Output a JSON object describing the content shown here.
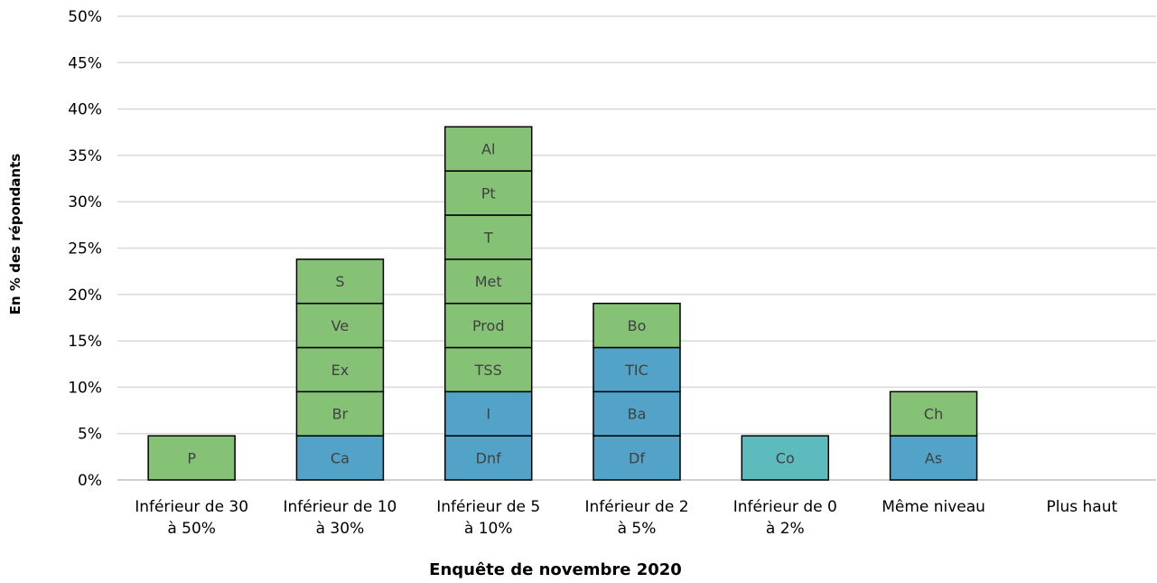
{
  "chart_data": {
    "type": "bar",
    "stacked": true,
    "title": "",
    "xlabel": "Enquête de novembre 2020",
    "ylabel": "En % des répondants",
    "ylim": [
      0,
      50
    ],
    "ytick_step": 5,
    "ytick_suffix": "%",
    "grid": true,
    "legend": "none",
    "colors": {
      "green": "#86C276",
      "blue": "#53A3C9",
      "teal": "#5DBBBD"
    },
    "categories": [
      {
        "label_lines": [
          "Inférieur de 30",
          "à 50%"
        ],
        "segments": [
          {
            "label": "P",
            "value": 4.76,
            "color": "green"
          }
        ]
      },
      {
        "label_lines": [
          "Inférieur de 10",
          "à 30%"
        ],
        "segments": [
          {
            "label": "Ca",
            "value": 4.76,
            "color": "blue"
          },
          {
            "label": "Br",
            "value": 4.76,
            "color": "green"
          },
          {
            "label": "Ex",
            "value": 4.76,
            "color": "green"
          },
          {
            "label": "Ve",
            "value": 4.76,
            "color": "green"
          },
          {
            "label": "S",
            "value": 4.76,
            "color": "green"
          }
        ]
      },
      {
        "label_lines": [
          "Inférieur de 5",
          "à 10%"
        ],
        "segments": [
          {
            "label": "Dnf",
            "value": 4.76,
            "color": "blue"
          },
          {
            "label": "I",
            "value": 4.76,
            "color": "blue"
          },
          {
            "label": "TSS",
            "value": 4.76,
            "color": "green"
          },
          {
            "label": "Prod",
            "value": 4.76,
            "color": "green"
          },
          {
            "label": "Met",
            "value": 4.76,
            "color": "green"
          },
          {
            "label": "T",
            "value": 4.76,
            "color": "green"
          },
          {
            "label": "Pt",
            "value": 4.76,
            "color": "green"
          },
          {
            "label": "Al",
            "value": 4.76,
            "color": "green"
          }
        ]
      },
      {
        "label_lines": [
          "Inférieur de 2",
          "à 5%"
        ],
        "segments": [
          {
            "label": "Df",
            "value": 4.76,
            "color": "blue"
          },
          {
            "label": "Ba",
            "value": 4.76,
            "color": "blue"
          },
          {
            "label": "TIC",
            "value": 4.76,
            "color": "blue"
          },
          {
            "label": "Bo",
            "value": 4.76,
            "color": "green"
          }
        ]
      },
      {
        "label_lines": [
          "Inférieur de 0",
          "à 2%"
        ],
        "segments": [
          {
            "label": "Co",
            "value": 4.76,
            "color": "teal"
          }
        ]
      },
      {
        "label_lines": [
          "Même niveau"
        ],
        "segments": [
          {
            "label": "As",
            "value": 4.76,
            "color": "blue"
          },
          {
            "label": "Ch",
            "value": 4.76,
            "color": "green"
          }
        ]
      },
      {
        "label_lines": [
          "Plus haut"
        ],
        "segments": []
      }
    ]
  }
}
